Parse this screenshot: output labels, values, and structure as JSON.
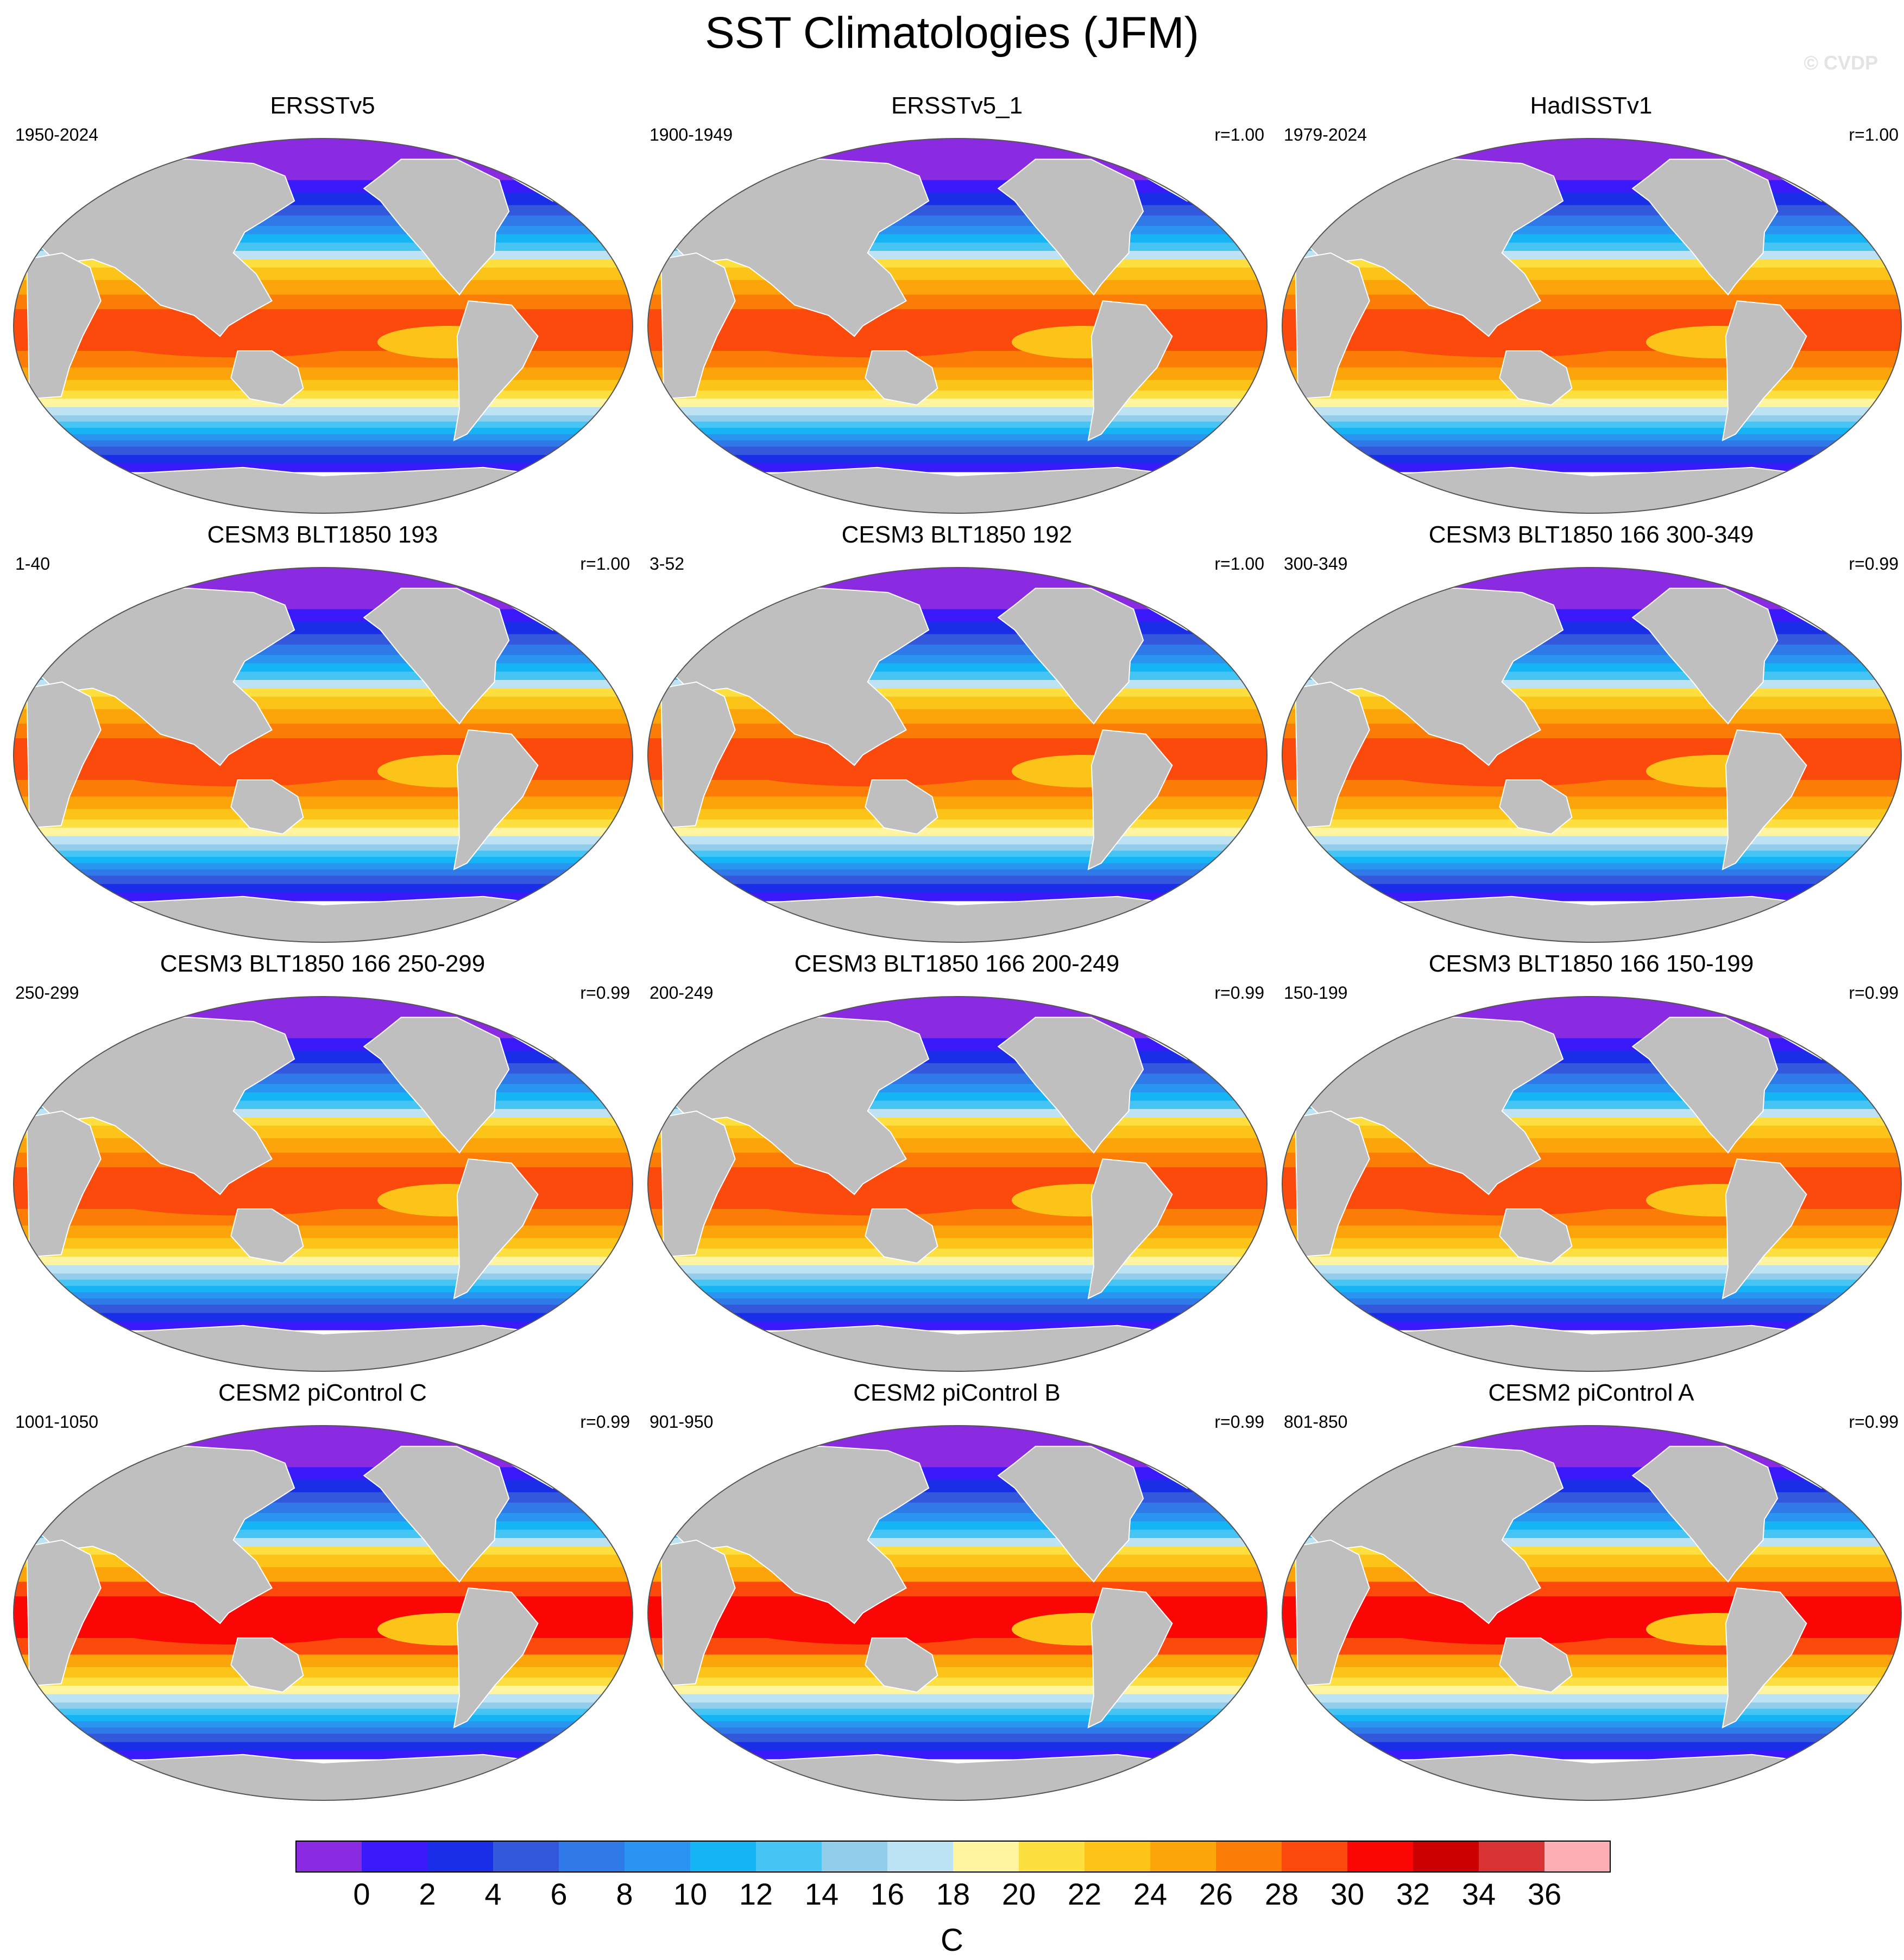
{
  "title": "SST Climatologies (JFM)",
  "watermark": "© CVDP",
  "panels": [
    {
      "title": "ERSSTv5",
      "left_label": "1950-2024",
      "right_label": "",
      "variant": 0
    },
    {
      "title": "ERSSTv5_1",
      "left_label": "1900-1949",
      "right_label": "r=1.00",
      "variant": 0
    },
    {
      "title": "HadISSTv1",
      "left_label": "1979-2024",
      "right_label": "r=1.00",
      "variant": 1
    },
    {
      "title": "CESM3 BLT1850 193",
      "left_label": "1-40",
      "right_label": "r=1.00",
      "variant": 2
    },
    {
      "title": "CESM3 BLT1850 192",
      "left_label": "3-52",
      "right_label": "r=1.00",
      "variant": 2
    },
    {
      "title": "CESM3 BLT1850 166 300-349",
      "left_label": "300-349",
      "right_label": "r=0.99",
      "variant": 2
    },
    {
      "title": "CESM3 BLT1850 166 250-299",
      "left_label": "250-299",
      "right_label": "r=0.99",
      "variant": 2
    },
    {
      "title": "CESM3 BLT1850 166 200-249",
      "left_label": "200-249",
      "right_label": "r=0.99",
      "variant": 2
    },
    {
      "title": "CESM3 BLT1850 166 150-199",
      "left_label": "150-199",
      "right_label": "r=0.99",
      "variant": 2
    },
    {
      "title": "CESM2 piControl C",
      "left_label": "1001-1050",
      "right_label": "r=0.99",
      "variant": 3
    },
    {
      "title": "CESM2 piControl B",
      "left_label": "901-950",
      "right_label": "r=0.99",
      "variant": 3
    },
    {
      "title": "CESM2 piControl A",
      "left_label": "801-850",
      "right_label": "r=0.99",
      "variant": 3
    }
  ],
  "colorbar": {
    "unit_label": "C",
    "tick_labels": [
      "0",
      "2",
      "4",
      "6",
      "8",
      "10",
      "12",
      "14",
      "16",
      "18",
      "20",
      "22",
      "24",
      "26",
      "28",
      "30",
      "32",
      "34",
      "36"
    ],
    "colors": [
      "#8a2be2",
      "#3a1afa",
      "#1a2ee8",
      "#3458dc",
      "#2f7ae8",
      "#2a95f0",
      "#14b4f5",
      "#46c4f4",
      "#92cdeb",
      "#bde2f4",
      "#fff5a0",
      "#fde040",
      "#fcc419",
      "#fca50b",
      "#fb7d07",
      "#fb4a0c",
      "#fb0505",
      "#cc0000",
      "#d83232",
      "#fcadb5"
    ],
    "land_color": "#bfbfbf"
  }
}
